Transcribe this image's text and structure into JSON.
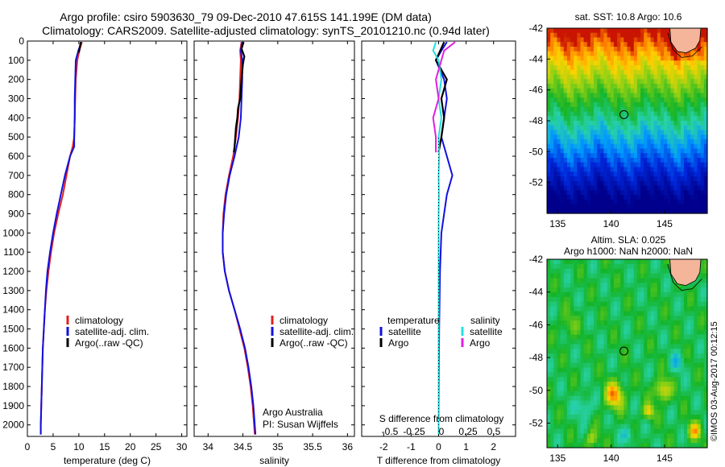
{
  "header": {
    "line1": "Argo profile: csiro 5903630_79 09-Dec-2010 47.615S 141.199E (DM data)",
    "line2": "Climatology: CARS2009. Satellite-adjusted climatology: synTS_20101210.nc (0.94d later)"
  },
  "colors": {
    "climatology": "#e02020",
    "satellite": "#1010e0",
    "argo": "#000000",
    "salinity_satellite": "#20e0e0",
    "salinity_argo": "#e020e0",
    "land": "#f5b59a"
  },
  "chart_data": [
    {
      "type": "line",
      "panel": "temperature",
      "xlabel": "temperature (deg C)",
      "ylabel": "",
      "xlim": [
        0,
        31
      ],
      "ylim": [
        2060,
        0
      ],
      "x_ticks": [
        0,
        5,
        10,
        15,
        20,
        25,
        30
      ],
      "y_ticks": [
        0,
        100,
        200,
        300,
        400,
        500,
        600,
        700,
        800,
        900,
        1000,
        1100,
        1200,
        1300,
        1400,
        1500,
        1600,
        1700,
        1800,
        1900,
        2000
      ],
      "legend": [
        "climatology",
        "satellite-adj. clim.",
        "Argo(..raw -QC)"
      ],
      "series": [
        {
          "name": "climatology",
          "color_key": "climatology",
          "depth": [
            5,
            50,
            100,
            200,
            300,
            400,
            500,
            550,
            600,
            700,
            800,
            900,
            1000,
            1100,
            1200,
            1300,
            1400,
            1500,
            1600,
            1700,
            1800,
            1900,
            2000,
            2050
          ],
          "values": [
            10.6,
            10.1,
            9.7,
            9.4,
            9.3,
            9.2,
            9.1,
            8.8,
            8.3,
            7.6,
            6.9,
            6.0,
            5.2,
            4.6,
            4.1,
            3.7,
            3.4,
            3.2,
            3.0,
            2.9,
            2.8,
            2.7,
            2.6,
            2.6
          ]
        },
        {
          "name": "satellite-adj. clim.",
          "color_key": "satellite",
          "depth": [
            5,
            50,
            100,
            200,
            300,
            400,
            500,
            550,
            600,
            700,
            800,
            900,
            1000,
            1100,
            1200,
            1300,
            1400,
            1500,
            1600,
            1700,
            1800,
            1900,
            2000,
            2050
          ],
          "values": [
            10.5,
            9.9,
            9.4,
            9.3,
            9.2,
            9.2,
            9.1,
            9.1,
            8.3,
            7.3,
            6.5,
            5.7,
            5.0,
            4.4,
            3.9,
            3.6,
            3.4,
            3.2,
            3.0,
            2.9,
            2.8,
            2.7,
            2.6,
            2.6
          ]
        },
        {
          "name": "Argo(..raw -QC)",
          "color_key": "argo",
          "depth": [
            5,
            30,
            60
          ],
          "values": [
            10.4,
            10.2,
            10.0
          ]
        }
      ]
    },
    {
      "type": "line",
      "panel": "salinity",
      "xlabel": "salinity",
      "ylabel": "",
      "xlim": [
        33.8,
        36.1
      ],
      "ylim": [
        2060,
        0
      ],
      "x_ticks": [
        34,
        34.5,
        35,
        35.5,
        36
      ],
      "legend": [
        "climatology",
        "satellite-adj. clim.",
        "Argo(..raw -QC)"
      ],
      "notes": [
        "Argo Australia",
        "PI: Susan Wijffels"
      ],
      "series": [
        {
          "name": "climatology",
          "color_key": "climatology",
          "depth": [
            5,
            50,
            100,
            200,
            300,
            400,
            500,
            600,
            700,
            800,
            900,
            1000,
            1100,
            1200,
            1300,
            1400,
            1500,
            1600,
            1700,
            1800,
            1900,
            2000,
            2050
          ],
          "values": [
            34.48,
            34.46,
            34.47,
            34.46,
            34.45,
            34.43,
            34.4,
            34.36,
            34.3,
            34.25,
            34.22,
            34.21,
            34.21,
            34.24,
            34.3,
            34.38,
            34.45,
            34.52,
            34.57,
            34.61,
            34.64,
            34.66,
            34.67
          ]
        },
        {
          "name": "satellite-adj. clim.",
          "color_key": "satellite",
          "depth": [
            5,
            50,
            100,
            200,
            300,
            400,
            500,
            600,
            700,
            800,
            900,
            1000,
            1100,
            1200,
            1300,
            1400,
            1500,
            1600,
            1700,
            1800,
            1900,
            2000,
            2050
          ],
          "values": [
            34.49,
            34.47,
            34.49,
            34.49,
            34.48,
            34.47,
            34.44,
            34.38,
            34.31,
            34.26,
            34.23,
            34.21,
            34.21,
            34.24,
            34.3,
            34.38,
            34.46,
            34.53,
            34.58,
            34.62,
            34.65,
            34.67,
            34.68
          ]
        },
        {
          "name": "Argo(..raw -QC)",
          "color_key": "argo",
          "depth": [
            5,
            40,
            80,
            120,
            200,
            300,
            350,
            400,
            450,
            500,
            550,
            580
          ],
          "values": [
            34.51,
            34.48,
            34.52,
            34.5,
            34.48,
            34.46,
            34.43,
            34.42,
            34.4,
            34.39,
            34.38,
            34.37
          ]
        }
      ]
    },
    {
      "type": "line",
      "panel": "differences",
      "xlabel": "T difference from climatology",
      "xlabel2": "S difference from climatology",
      "xlim": [
        -2.8,
        2.8
      ],
      "x_ticks": [
        -2,
        -1,
        0,
        1,
        2
      ],
      "x2_ticks": [
        "-0.5",
        "-0.25",
        "0",
        "0.25",
        "0.5"
      ],
      "ylim": [
        2060,
        0
      ],
      "legend_titles": [
        "temperature",
        "salinity"
      ],
      "legend": [
        "satellite",
        "Argo",
        "satellite",
        "Argo"
      ],
      "series": [
        {
          "name": "satellite",
          "group": "temperature",
          "color_key": "satellite",
          "depth": [
            5,
            50,
            100,
            200,
            300,
            400,
            500,
            600,
            700,
            800,
            900,
            1000,
            1200,
            1500,
            2000,
            2050
          ],
          "values": [
            0.3,
            0.1,
            -0.1,
            0.2,
            0.3,
            0.2,
            0.1,
            0.3,
            0.5,
            0.3,
            0.2,
            0.1,
            0.05,
            0.02,
            0.0,
            0.0
          ]
        },
        {
          "name": "Argo",
          "group": "temperature",
          "color_key": "argo",
          "depth": [
            5,
            100,
            200,
            300,
            400,
            500,
            580
          ],
          "values": [
            0.2,
            -0.1,
            0.3,
            0.1,
            0.2,
            0.1,
            0.0
          ]
        },
        {
          "name": "satellite",
          "group": "salinity",
          "color_key": "salinity_satellite",
          "depth": [
            5,
            50,
            100,
            200,
            300,
            400,
            500,
            600,
            700,
            800,
            900,
            1000,
            1200,
            1500,
            2000,
            2050
          ],
          "values": [
            -0.1,
            -0.2,
            0.0,
            0.1,
            0.0,
            0.1,
            0.0,
            0.02,
            0.0,
            0.01,
            0.0,
            0.0,
            0.0,
            0.0,
            0.0,
            0.0
          ]
        },
        {
          "name": "Argo",
          "group": "salinity",
          "color_key": "salinity_argo",
          "depth": [
            5,
            50,
            100,
            200,
            300,
            400,
            500,
            580
          ],
          "values": [
            0.6,
            0.2,
            0.1,
            -0.1,
            0.0,
            -0.2,
            -0.1,
            -0.1
          ]
        }
      ]
    },
    {
      "type": "heatmap",
      "panel": "sst-map",
      "title": "sat. SST: 10.8 Argo: 10.6",
      "xlim": [
        134,
        149
      ],
      "ylim": [
        -54,
        -42
      ],
      "x_ticks": [
        135,
        140,
        145
      ],
      "y_ticks": [
        -42,
        -44,
        -46,
        -48,
        -50,
        -52
      ],
      "marker": {
        "lon": 141.2,
        "lat": -47.6
      }
    },
    {
      "type": "heatmap",
      "panel": "sla-map",
      "title": "Altim. SLA: 0.025",
      "subtitle": "Argo h1000: NaN h2000: NaN",
      "xlim": [
        134,
        149
      ],
      "ylim": [
        -53.5,
        -42
      ],
      "x_ticks": [
        135,
        140,
        145
      ],
      "y_ticks": [
        -42,
        -44,
        -46,
        -48,
        -50,
        -52
      ],
      "marker": {
        "lon": 141.2,
        "lat": -47.6
      }
    }
  ],
  "watermark": "©IMOS 03-Aug-2017 00:12:15"
}
